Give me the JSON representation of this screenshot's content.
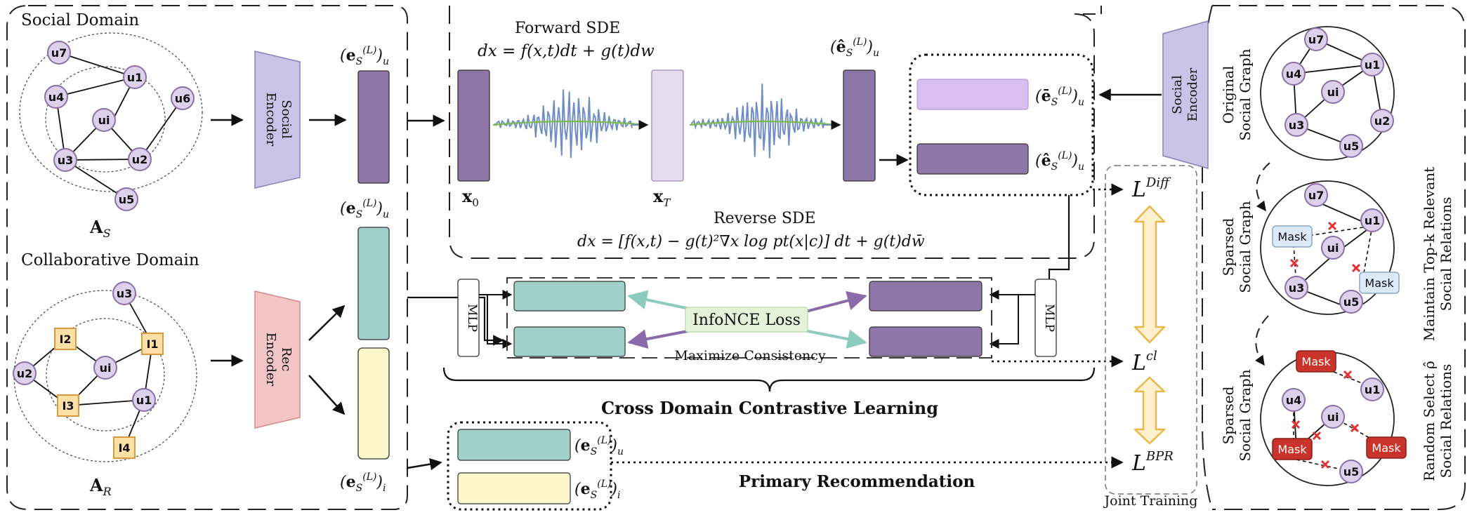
{
  "social_domain": {
    "title": "Social Domain",
    "matrix": "A",
    "matrix_sub": "S",
    "nodes": [
      "u7",
      "u1",
      "u6",
      "u4",
      "ui",
      "u3",
      "u2",
      "u5"
    ]
  },
  "collab_domain": {
    "title": "Collaborative Domain",
    "matrix": "A",
    "matrix_sub": "R",
    "users": [
      "u3",
      "u2",
      "ui",
      "u1"
    ],
    "items": [
      "I2",
      "I1",
      "I3",
      "I4"
    ]
  },
  "encoders": {
    "social": [
      "Social",
      "Encoder"
    ],
    "rec": [
      "Rec",
      "Encoder"
    ],
    "social_right": [
      "Social",
      "Encoder"
    ]
  },
  "embeddings": {
    "social_top": "(e_S^(L))_u",
    "social_mid": "(e_S^(L))_u",
    "item_bottom": "(e_S^(L))_i",
    "hat_top": "(ê_S^(L))_u",
    "bar_out": "(ē_S^(L))_u",
    "hat_out": "(ê_S^(L))_u",
    "pr_user": "(e_S^(L))_u",
    "pr_item": "(e_S^(L))_i"
  },
  "diffusion": {
    "forward_title": "Forward SDE",
    "forward_eq": "dx = f(x,t)dt + g(t)dw",
    "x0": "x",
    "x0_sub": "0",
    "xT": "x",
    "xT_sub": "T",
    "reverse_title": "Reverse SDE",
    "reverse_eq": "dx = [f(x,t) − g(t)²∇x log pt(x|c)] dt + g(t)dw̄"
  },
  "contrastive": {
    "mlp": "MLP",
    "infonce": "InfoNCE Loss",
    "maximize": "Maximize Consistency",
    "caption": "Cross Domain Contrastive Learning"
  },
  "primary": {
    "caption": "Primary Recommendation"
  },
  "losses": {
    "diff": "L",
    "diff_sup": "Diff",
    "cl": "L",
    "cl_sup": "cl",
    "bpr": "L",
    "bpr_sup": "BPR",
    "joint": "Joint Training"
  },
  "right_panel": {
    "original_label": [
      "Original",
      "Social Graph"
    ],
    "sparsed_label": [
      "Sparsed",
      "Social Graph"
    ],
    "sparsed_label2": [
      "Sparsed",
      "Social Graph"
    ],
    "topk_label": [
      "Maintain Top-k Relevant",
      "Social Relations"
    ],
    "random_label": [
      "Random Select ρ̂",
      "Social Relations"
    ],
    "mask": "Mask",
    "nodes": [
      "u7",
      "u4",
      "u1",
      "ui",
      "u3",
      "u2",
      "u5"
    ]
  },
  "colors": {
    "purple_dark": "#8f76a8",
    "purple_light": "#d9bff0",
    "lavender": "#c9c3e6",
    "teal": "#9fd0c9",
    "yellow": "#fdf7cc",
    "rec_red": "#f3c6c6",
    "node_fill": "#dcd0ea",
    "item_fill": "#fde0a8",
    "wave_blue": "#6f8fc4",
    "wave_green": "#7cba4c",
    "gold": "#e8b84a",
    "mask_red": "#c8342a",
    "mask_blue": "#dbe9f8",
    "infonce_bg": "#e3f2d9"
  }
}
